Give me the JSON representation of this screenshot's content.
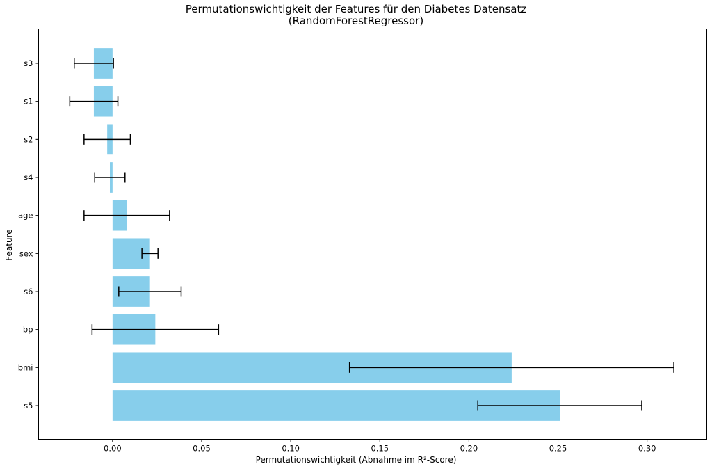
{
  "chart_data": {
    "type": "bar",
    "orientation": "horizontal",
    "title": "Permutationswichtigkeit der Features für den Diabetes Datensatz",
    "subtitle": "(RandomForestRegressor)",
    "xlabel": "Permutationswichtigkeit (Abnahme im R²-Score)",
    "ylabel": "Feature",
    "xlim": [
      -0.0415,
      0.3335
    ],
    "xticks": [
      0.0,
      0.05,
      0.1,
      0.15,
      0.2,
      0.25,
      0.3
    ],
    "xtick_labels": [
      "0.00",
      "0.05",
      "0.10",
      "0.15",
      "0.20",
      "0.25",
      "0.30"
    ],
    "grid": false,
    "bar_color": "#87ceeb",
    "error_color": "#000000",
    "categories": [
      "s5",
      "bmi",
      "bp",
      "s6",
      "sex",
      "age",
      "s4",
      "s2",
      "s1",
      "s3"
    ],
    "values": [
      0.251,
      0.224,
      0.024,
      0.021,
      0.021,
      0.008,
      -0.0015,
      -0.003,
      -0.0105,
      -0.0105
    ],
    "errors": [
      0.046,
      0.091,
      0.0355,
      0.0175,
      0.0045,
      0.024,
      0.0085,
      0.013,
      0.0135,
      0.011
    ]
  }
}
